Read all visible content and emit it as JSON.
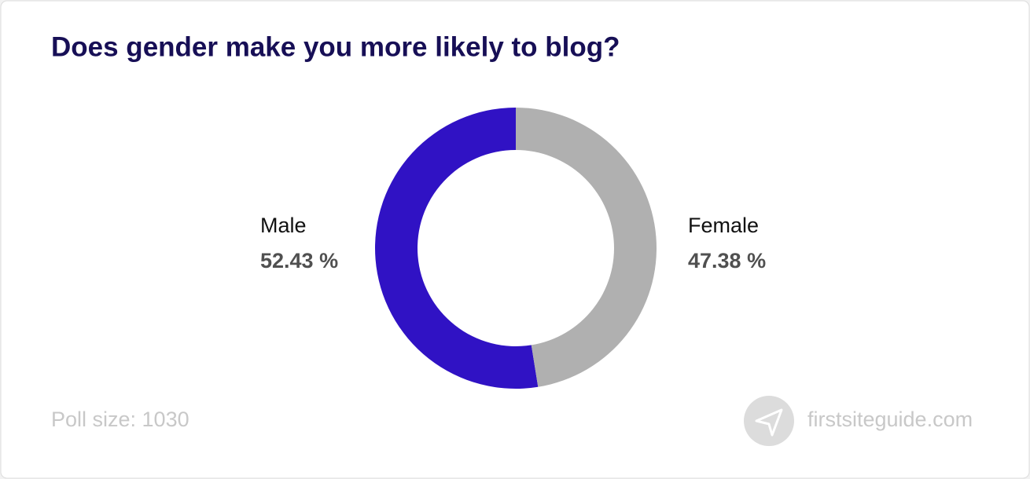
{
  "chart_data": {
    "type": "donut",
    "title": "Does gender make you more likely to blog?",
    "categories": [
      "Male",
      "Female"
    ],
    "values": [
      52.43,
      47.38
    ],
    "value_labels": [
      "52.43 %",
      "47.38 %"
    ],
    "colors": [
      "#3012c4",
      "#b0b0b0"
    ],
    "footnote": "Poll size: 1030",
    "source": "firstsiteguide.com"
  }
}
